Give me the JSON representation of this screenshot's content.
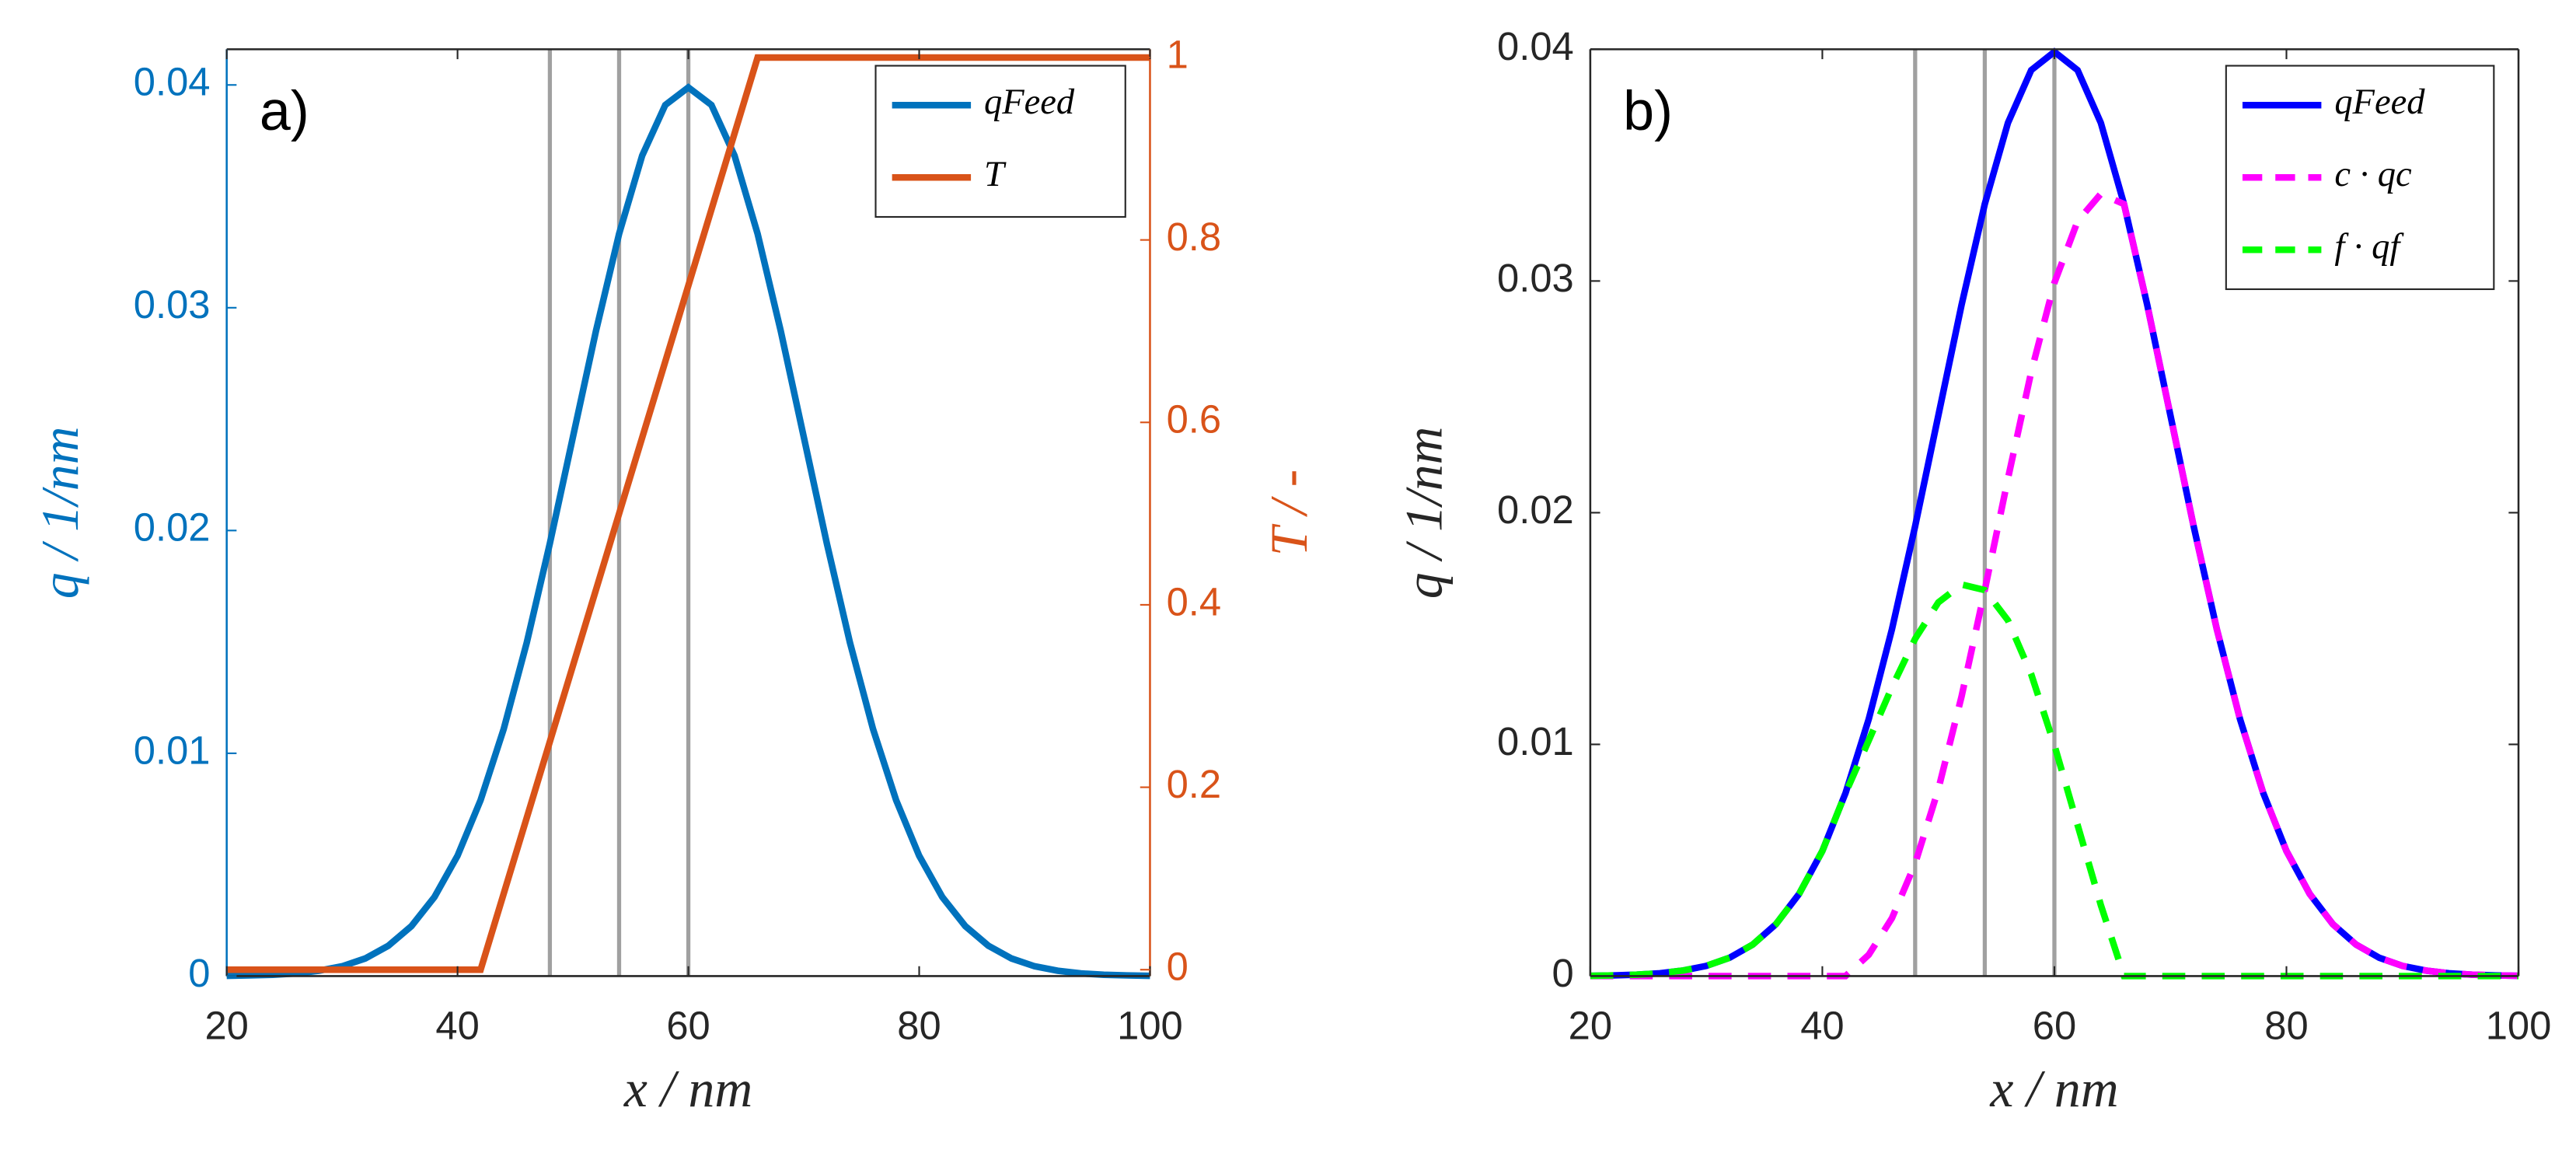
{
  "chart_data": [
    {
      "type": "line",
      "panel_label": "a)",
      "xlabel": "x / nm",
      "ylabel": "q / 1/nm",
      "y2label": "T / -",
      "xlim": [
        20,
        100
      ],
      "xticks": [
        20,
        40,
        60,
        80,
        100
      ],
      "ylim": [
        0,
        0.0416
      ],
      "yticks": [
        0,
        0.01,
        0.02,
        0.03,
        0.04
      ],
      "y2lim": [
        -0.007,
        1.009
      ],
      "y2ticks": [
        0,
        0.2,
        0.4,
        0.6,
        0.8,
        1
      ],
      "vlines": [
        48,
        54,
        60
      ],
      "legend": "upper right",
      "x": [
        20,
        22,
        24,
        26,
        28,
        30,
        32,
        34,
        36,
        38,
        40,
        42,
        44,
        46,
        48,
        50,
        52,
        54,
        56,
        58,
        60,
        62,
        64,
        66,
        68,
        70,
        72,
        74,
        76,
        78,
        80,
        82,
        84,
        86,
        88,
        90,
        92,
        94,
        96,
        98,
        100
      ],
      "series": [
        {
          "name": "qFeed",
          "color": "#0072BD",
          "values": [
            1e-05,
            3e-05,
            6e-05,
            0.00012,
            0.00024,
            0.00044,
            0.00079,
            0.00136,
            0.00224,
            0.00355,
            0.0054,
            0.0079,
            0.01109,
            0.01497,
            0.01942,
            0.0242,
            0.02897,
            0.03332,
            0.03683,
            0.0391,
            0.03989,
            0.0391,
            0.03683,
            0.03332,
            0.02897,
            0.0242,
            0.01942,
            0.01497,
            0.01109,
            0.0079,
            0.0054,
            0.00355,
            0.00224,
            0.00136,
            0.00079,
            0.00044,
            0.00024,
            0.00012,
            6e-05,
            3e-05,
            1e-05
          ]
        },
        {
          "name": "T",
          "color": "#D95319",
          "axis": "y2",
          "x": [
            20,
            42,
            66,
            100
          ],
          "values": [
            0,
            0,
            1,
            1
          ]
        }
      ]
    },
    {
      "type": "line",
      "panel_label": "b)",
      "xlabel": "x / nm",
      "ylabel": "q / 1/nm",
      "xlim": [
        20,
        100
      ],
      "xticks": [
        20,
        40,
        60,
        80,
        100
      ],
      "ylim": [
        0,
        0.04
      ],
      "yticks": [
        0,
        0.01,
        0.02,
        0.03,
        0.04
      ],
      "vlines": [
        48,
        54,
        60
      ],
      "legend": "upper right",
      "x": [
        20,
        22,
        24,
        26,
        28,
        30,
        32,
        34,
        36,
        38,
        40,
        42,
        44,
        46,
        48,
        50,
        52,
        54,
        56,
        58,
        60,
        62,
        64,
        66,
        68,
        70,
        72,
        74,
        76,
        78,
        80,
        82,
        84,
        86,
        88,
        90,
        92,
        94,
        96,
        98,
        100
      ],
      "series": [
        {
          "name": "qFeed",
          "color": "#0000FF",
          "values": [
            1e-05,
            3e-05,
            6e-05,
            0.00012,
            0.00024,
            0.00044,
            0.00079,
            0.00136,
            0.00224,
            0.00355,
            0.0054,
            0.0079,
            0.01109,
            0.01497,
            0.01942,
            0.0242,
            0.02897,
            0.03332,
            0.03683,
            0.0391,
            0.03989,
            0.0391,
            0.03683,
            0.03332,
            0.02897,
            0.0242,
            0.01942,
            0.01497,
            0.01109,
            0.0079,
            0.0054,
            0.00355,
            0.00224,
            0.00136,
            0.00079,
            0.00044,
            0.00024,
            0.00012,
            6e-05,
            3e-05,
            1e-05
          ]
        },
        {
          "name": "c · qc",
          "color": "#FF00FF",
          "dash": true,
          "values": [
            0,
            0,
            0,
            0,
            0,
            0,
            0,
            0,
            0,
            0,
            0,
            0,
            0.00092,
            0.0025,
            0.00486,
            0.00807,
            0.01207,
            0.01666,
            0.02148,
            0.02607,
            0.02992,
            0.03258,
            0.03376,
            0.03332,
            0.02897,
            0.0242,
            0.01942,
            0.01497,
            0.01109,
            0.0079,
            0.0054,
            0.00355,
            0.00224,
            0.00136,
            0.00079,
            0.00044,
            0.00024,
            0.00012,
            6e-05,
            3e-05,
            1e-05
          ]
        },
        {
          "name": "f · qf",
          "color": "#00FF00",
          "dash": true,
          "values": [
            1e-05,
            3e-05,
            6e-05,
            0.00012,
            0.00024,
            0.00044,
            0.00079,
            0.00136,
            0.00224,
            0.00355,
            0.0054,
            0.0079,
            0.01017,
            0.01247,
            0.01456,
            0.01613,
            0.0169,
            0.01666,
            0.01535,
            0.01303,
            0.00997,
            0.00652,
            0.00307,
            0,
            0,
            0,
            0,
            0,
            0,
            0,
            0,
            0,
            0,
            0,
            0,
            0,
            0,
            0,
            0,
            0,
            0
          ]
        }
      ]
    }
  ]
}
